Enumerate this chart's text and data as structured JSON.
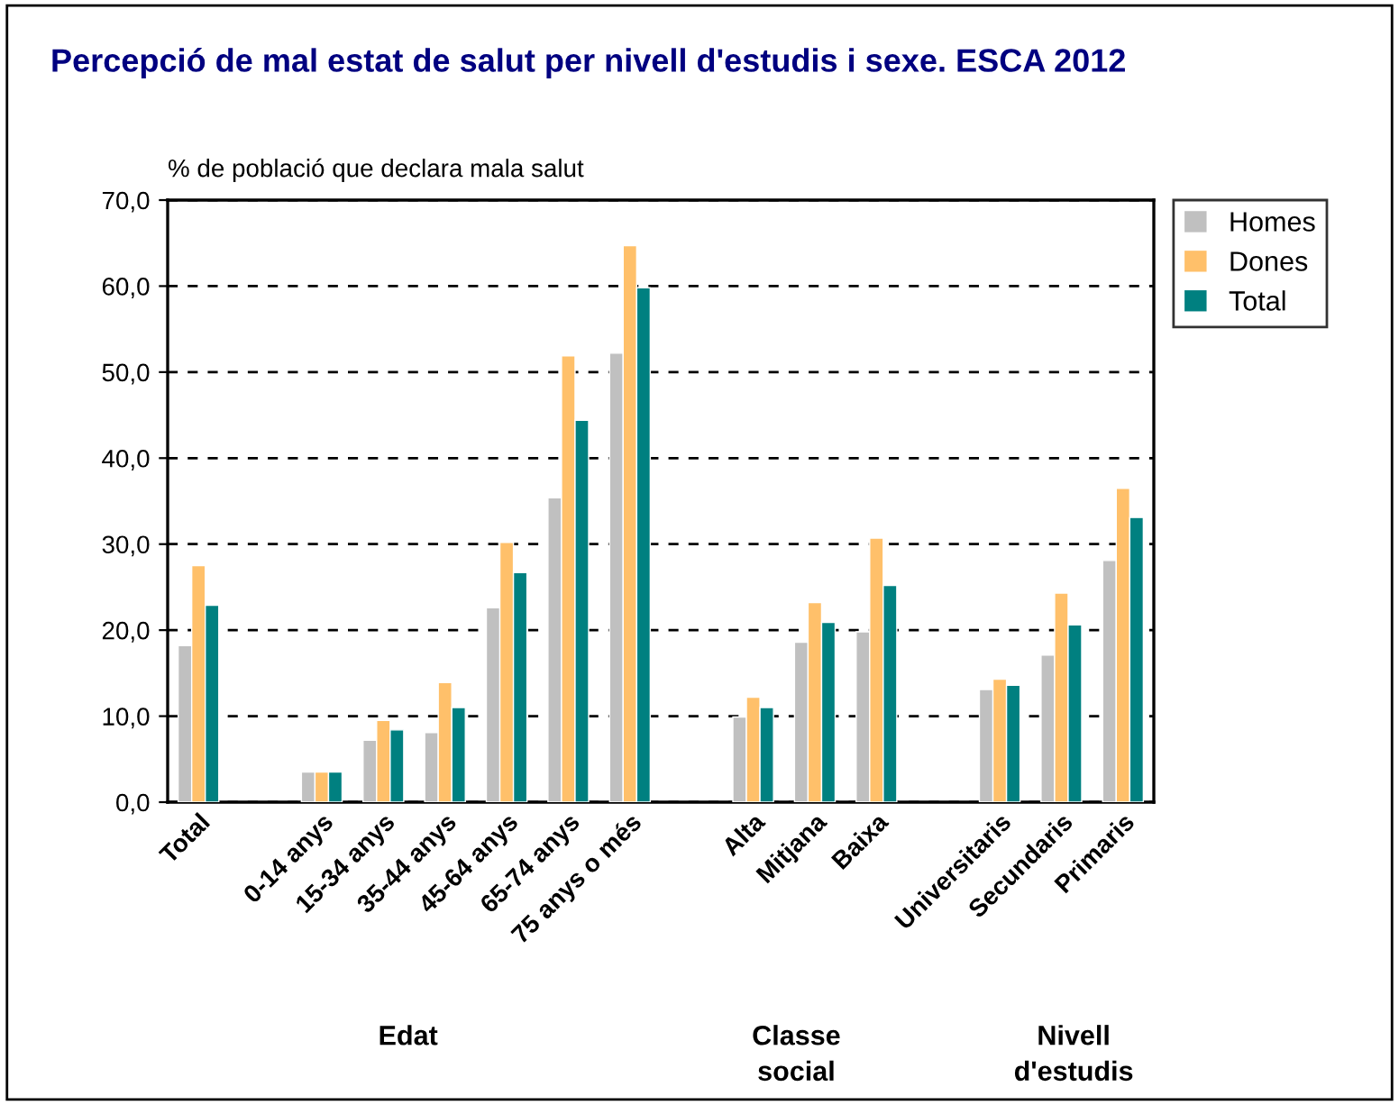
{
  "chart_data": {
    "type": "bar",
    "title": "Percepció de mal estat de salut per nivell d'estudis i sexe. ESCA 2012",
    "ylabel": "% de població que declara mala salut",
    "categories": [
      "Total",
      null,
      "0-14 anys",
      "15-34 anys",
      "35-44 anys",
      "45-64 anys",
      "65-74 anys",
      "75 anys o més",
      null,
      "Alta",
      "Mitjana",
      "Baixa",
      null,
      "Universitaris",
      "Secundaris",
      "Primaris"
    ],
    "series": [
      {
        "name": "Homes",
        "color": "#c0c0c0",
        "values": [
          18.2,
          null,
          3.5,
          7.2,
          8.1,
          22.6,
          35.4,
          52.2,
          null,
          9.9,
          18.6,
          19.8,
          null,
          13.1,
          17.1,
          28.1
        ]
      },
      {
        "name": "Dones",
        "color": "#ffc06a",
        "values": [
          27.5,
          null,
          3.5,
          9.5,
          13.9,
          30.2,
          51.9,
          64.7,
          null,
          12.2,
          23.2,
          30.7,
          null,
          14.3,
          24.3,
          36.5
        ]
      },
      {
        "name": "Total",
        "color": "#008080",
        "values": [
          22.9,
          null,
          3.5,
          8.4,
          11.0,
          26.7,
          44.4,
          59.8,
          null,
          11.0,
          20.9,
          25.2,
          null,
          13.6,
          20.6,
          33.1
        ]
      }
    ],
    "annotations": [
      "Edat",
      "Classe social",
      "Nivell d'estudis"
    ],
    "ylim": [
      0,
      70
    ],
    "yticks": [
      {
        "value": 0,
        "label": "0,0"
      },
      {
        "value": 10,
        "label": "10,0"
      },
      {
        "value": 20,
        "label": "20,0"
      },
      {
        "value": 30,
        "label": "30,0"
      },
      {
        "value": 40,
        "label": "40,0"
      },
      {
        "value": 50,
        "label": "50,0"
      },
      {
        "value": 60,
        "label": "60,0"
      },
      {
        "value": 70,
        "label": "70,0"
      }
    ],
    "grid": "y",
    "legend": "top right"
  }
}
